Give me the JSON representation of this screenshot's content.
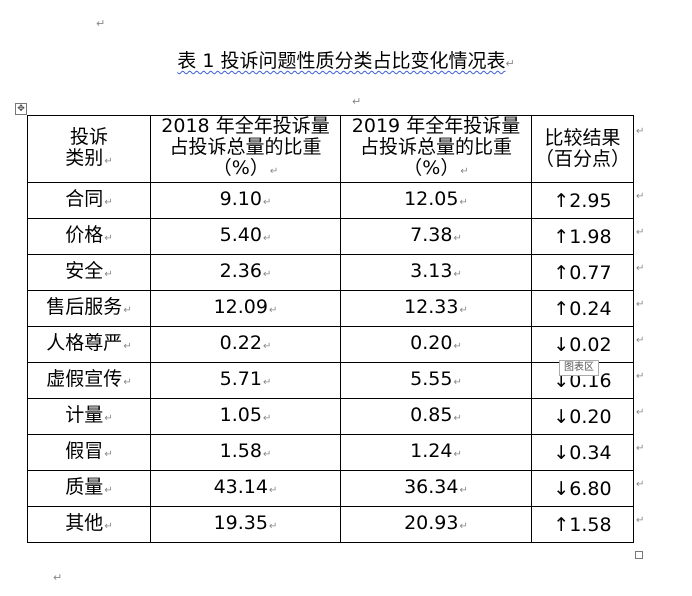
{
  "title": "表 1  投诉问题性质分类占比变化情况表",
  "table": {
    "headers": {
      "category_l1": "投诉",
      "category_l2": "类别",
      "y2018_l1": "2018 年全年投诉量",
      "y2018_l2": "占投诉总量的比重",
      "y2018_l3": "（%）",
      "y2019_l1": "2019 年全年投诉量",
      "y2019_l2": "占投诉总量的比重",
      "y2019_l3": "（%）",
      "compare_l1": "比较结果",
      "compare_l2": "（百分点）"
    },
    "rows": [
      {
        "category": "合同",
        "y2018": "9.10",
        "y2019": "12.05",
        "change": "↑2.95"
      },
      {
        "category": "价格",
        "y2018": "5.40",
        "y2019": "7.38",
        "change": "↑1.98"
      },
      {
        "category": "安全",
        "y2018": "2.36",
        "y2019": "3.13",
        "change": "↑0.77"
      },
      {
        "category": "售后服务",
        "y2018": "12.09",
        "y2019": "12.33",
        "change": "↑0.24"
      },
      {
        "category": "人格尊严",
        "y2018": "0.22",
        "y2019": "0.20",
        "change": "↓0.02"
      },
      {
        "category": "虚假宣传",
        "y2018": "5.71",
        "y2019": "5.55",
        "change": "↓0.16"
      },
      {
        "category": "计量",
        "y2018": "1.05",
        "y2019": "0.85",
        "change": "↓0.20"
      },
      {
        "category": "假冒",
        "y2018": "1.58",
        "y2019": "1.24",
        "change": "↓0.34"
      },
      {
        "category": "质量",
        "y2018": "43.14",
        "y2019": "36.34",
        "change": "↓6.80"
      },
      {
        "category": "其他",
        "y2018": "19.35",
        "y2019": "20.93",
        "change": "↑1.58"
      }
    ]
  },
  "tooltip": "图表区",
  "marks": {
    "paragraph": "↵",
    "move_handle": "✥"
  }
}
